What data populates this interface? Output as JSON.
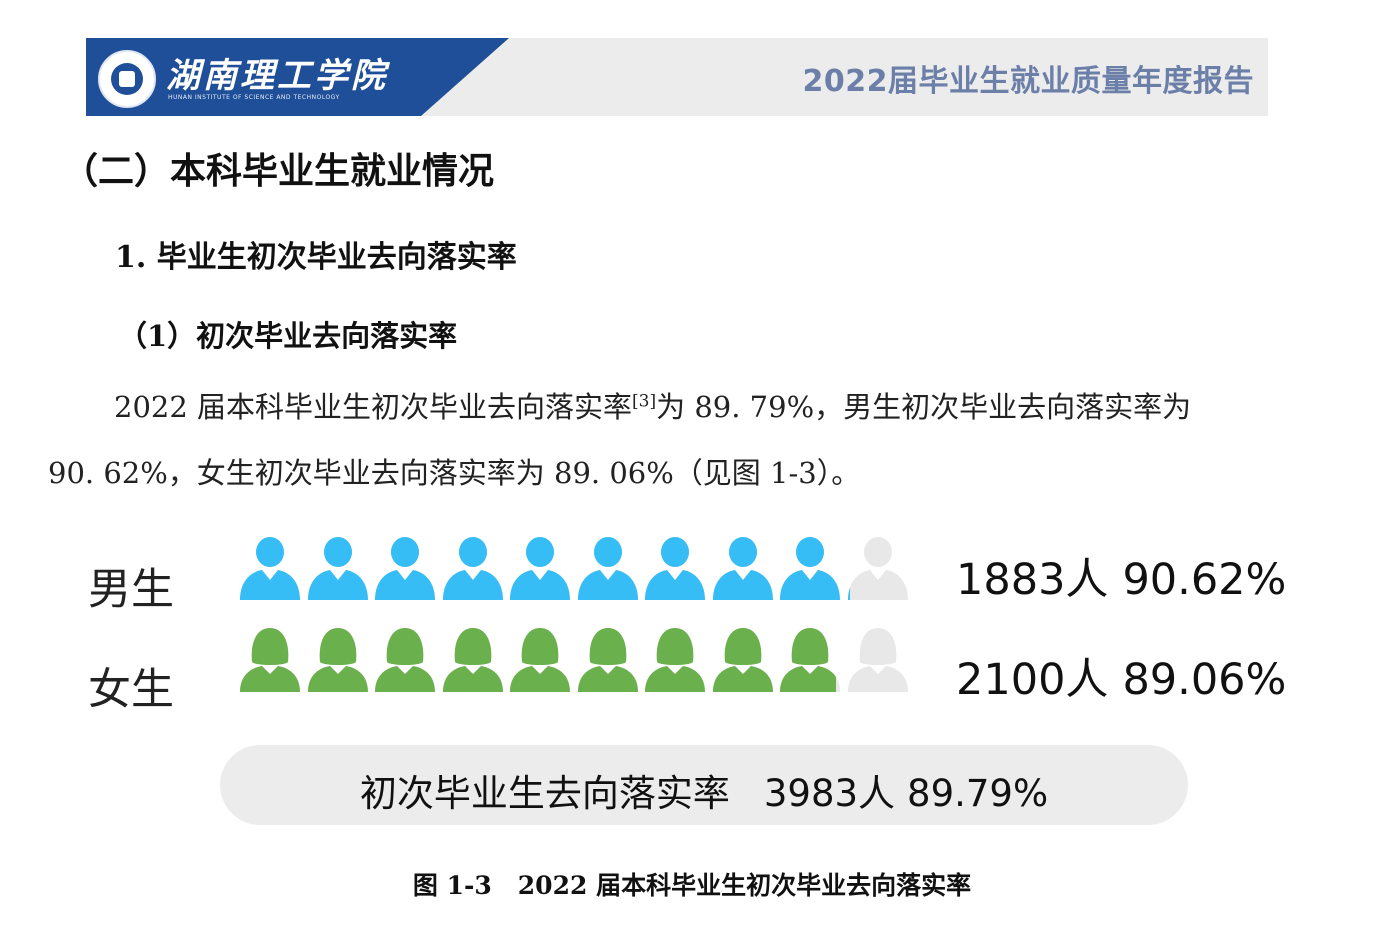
{
  "header": {
    "school_name": "湖南理工学院",
    "school_en": "HUNAN INSTITUTE OF SCIENCE AND TECHNOLOGY",
    "report_title": "2022届毕业生就业质量年度报告"
  },
  "section": {
    "h2": "（二）本科毕业生就业情况",
    "h3": "1. 毕业生初次毕业去向落实率",
    "h4": "（1）初次毕业去向落实率"
  },
  "paragraph": {
    "line1_a": "2022 届本科毕业生初次毕业去向落实率",
    "line1_sup": "[3]",
    "line1_b": "为 89. 79%，男生初次毕业去向落实率为",
    "line2": "90. 62%，女生初次毕业去向落实率为 89. 06%（见图 1-3）。"
  },
  "chart_data": {
    "type": "pictograph",
    "icons_per_row": 10,
    "series": [
      {
        "name": "男生",
        "count_label": "1883人",
        "rate_label": "90.62%",
        "rate": 90.62,
        "color": "#36bdf6"
      },
      {
        "name": "女生",
        "count_label": "2100人",
        "rate_label": "89.06%",
        "rate": 89.06,
        "color": "#6ab04c"
      }
    ],
    "empty_color": "#e8e8e8",
    "total": {
      "label": "初次毕业生去向落实率",
      "count_label": "3983人",
      "rate_label": "89.79%"
    }
  },
  "caption": {
    "fig_no": "图 1-3",
    "text": "2022 届本科毕业生初次毕业去向落实率"
  }
}
